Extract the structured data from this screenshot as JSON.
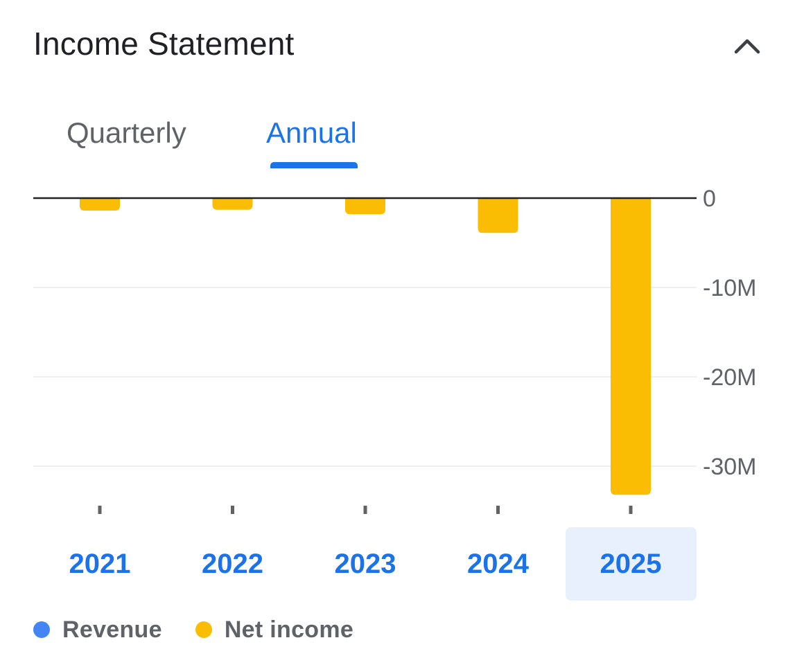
{
  "header": {
    "title": "Income Statement",
    "collapse_icon": "chevron-up-icon"
  },
  "tabs": [
    {
      "label": "Quarterly",
      "selected": false
    },
    {
      "label": "Annual",
      "selected": true
    }
  ],
  "colors": {
    "revenue": "#4285f4",
    "net_income": "#fbbc04",
    "accent": "#1a73e8",
    "selected_year_bg": "#e8f0fe"
  },
  "chart_data": {
    "type": "bar",
    "categories": [
      "2021",
      "2022",
      "2023",
      "2024",
      "2025"
    ],
    "selected_category": "2025",
    "series": [
      {
        "name": "Revenue",
        "values": [
          0,
          0,
          0,
          0,
          0
        ]
      },
      {
        "name": "Net income",
        "values": [
          -1.4,
          -1.3,
          -1.8,
          -3.9,
          -33.2
        ]
      }
    ],
    "y_unit": "M",
    "ylim": [
      -33.5,
      0
    ],
    "yticks": [
      {
        "value": 0,
        "label": "0"
      },
      {
        "value": -10,
        "label": "-10M"
      },
      {
        "value": -20,
        "label": "-20M"
      },
      {
        "value": -30,
        "label": "-30M"
      }
    ],
    "grid": true,
    "legend_position": "bottom-left"
  },
  "legend": [
    {
      "label": "Revenue",
      "color": "#4285f4"
    },
    {
      "label": "Net income",
      "color": "#fbbc04"
    }
  ]
}
